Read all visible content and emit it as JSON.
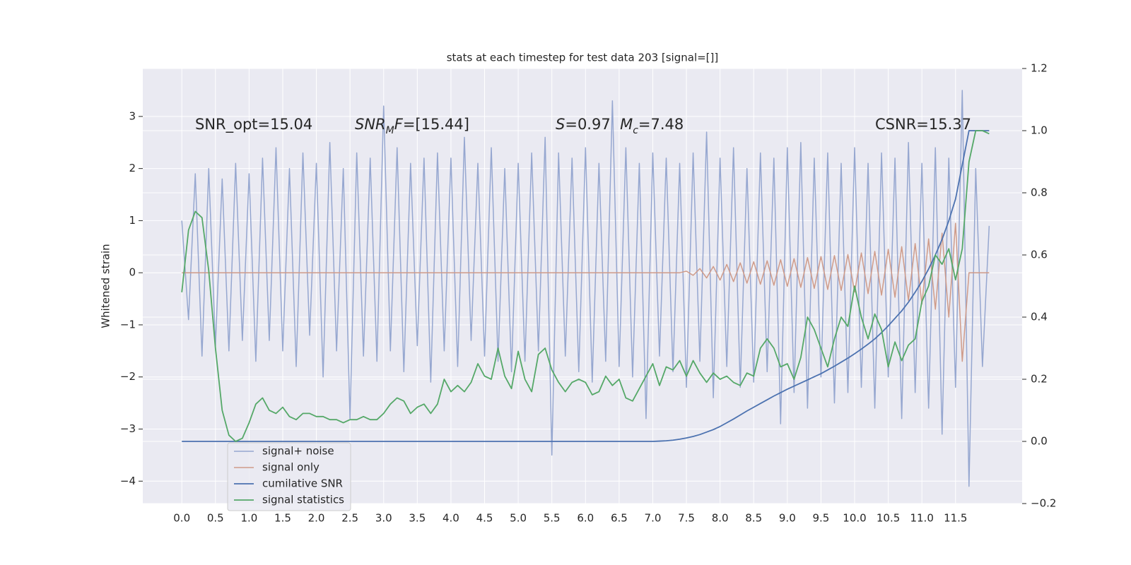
{
  "chart_data": {
    "type": "line",
    "title": "stats at each timestep for test data 203 [signal=[]]",
    "ylabel": "Whitened strain",
    "grid": true,
    "legend_loc": "lower left",
    "xlim": [
      -0.58,
      12.49
    ],
    "ylim": [
      -4.43,
      3.92
    ],
    "y2lim": [
      -0.2,
      1.2
    ],
    "xticks": [
      {
        "value": 0,
        "label": "0.0"
      },
      0.5,
      {
        "value": 1,
        "label": "1.0"
      },
      1.5,
      {
        "value": 2,
        "label": "2.0"
      },
      2.5,
      {
        "value": 3,
        "label": "3.0"
      },
      3.5,
      {
        "value": 4,
        "label": "4.0"
      },
      4.5,
      {
        "value": 5,
        "label": "5.0"
      },
      5.5,
      {
        "value": 6,
        "label": "6.0"
      },
      6.5,
      {
        "value": 7,
        "label": "7.0"
      },
      7.5,
      {
        "value": 8,
        "label": "8.0"
      },
      8.5,
      {
        "value": 9,
        "label": "9.0"
      },
      9.5,
      {
        "value": 10,
        "label": "10.0"
      },
      10.5,
      {
        "value": 11,
        "label": "11.0"
      },
      11.5
    ],
    "yticks": [
      {
        "value": -4,
        "label": "−4"
      },
      {
        "value": -3,
        "label": "−3"
      },
      {
        "value": -2,
        "label": "−2"
      },
      {
        "value": -1,
        "label": "−1"
      },
      0,
      1,
      2,
      3
    ],
    "y2ticks": [
      {
        "value": -0.2,
        "label": "−0.2"
      },
      {
        "value": 0,
        "label": "0.0"
      },
      0.2,
      0.4,
      0.6,
      0.8,
      {
        "value": 1,
        "label": "1.0"
      },
      1.2
    ],
    "annotations": [
      {
        "segments": [
          {
            "text": "SNR_opt=15.04"
          }
        ]
      },
      {
        "segments": [
          {
            "text": "SNR",
            "italic": true
          },
          {
            "text": "M",
            "italic": true,
            "sub": true
          },
          {
            "text": "F",
            "italic": true
          },
          {
            "text": "=[15.44]"
          }
        ]
      },
      {
        "segments": [
          {
            "text": "S",
            "italic": true
          },
          {
            "text": "=0.97  "
          },
          {
            "text": "M",
            "italic": true
          },
          {
            "text": "c",
            "italic": true,
            "sub": true
          },
          {
            "text": "=7.48"
          }
        ]
      },
      {
        "segments": [
          {
            "text": "CSNR=15.37"
          }
        ]
      }
    ],
    "x": [
      0,
      0.1,
      0.2,
      0.3,
      0.4,
      0.5,
      0.6,
      0.7,
      0.8,
      0.9,
      1,
      1.1,
      1.2,
      1.3,
      1.4,
      1.5,
      1.6,
      1.7,
      1.8,
      1.9,
      2,
      2.1,
      2.2,
      2.3,
      2.4,
      2.5,
      2.6,
      2.7,
      2.8,
      2.9,
      3,
      3.1,
      3.2,
      3.3,
      3.4,
      3.5,
      3.6,
      3.7,
      3.8,
      3.9,
      4,
      4.1,
      4.2,
      4.3,
      4.4,
      4.5,
      4.6,
      4.7,
      4.8,
      4.9,
      5,
      5.1,
      5.2,
      5.3,
      5.4,
      5.5,
      5.6,
      5.7,
      5.8,
      5.9,
      6,
      6.1,
      6.2,
      6.3,
      6.4,
      6.5,
      6.6,
      6.7,
      6.8,
      6.9,
      7,
      7.1,
      7.2,
      7.3,
      7.4,
      7.5,
      7.6,
      7.7,
      7.8,
      7.9,
      8,
      8.1,
      8.2,
      8.3,
      8.4,
      8.5,
      8.6,
      8.7,
      8.8,
      8.9,
      9,
      9.1,
      9.2,
      9.3,
      9.4,
      9.5,
      9.6,
      9.7,
      9.8,
      9.9,
      10,
      10.1,
      10.2,
      10.3,
      10.4,
      10.5,
      10.6,
      10.7,
      10.8,
      10.9,
      11,
      11.1,
      11.2,
      11.3,
      11.4,
      11.5,
      11.6,
      11.7,
      11.8,
      11.9,
      12
    ],
    "series": [
      {
        "name": "signal+ noise",
        "color": "#96a7d0",
        "width": 1.5,
        "values": [
          1.0,
          -0.9,
          1.9,
          -1.6,
          2.0,
          -1.4,
          1.8,
          -1.5,
          2.1,
          -1.3,
          1.9,
          -1.7,
          2.2,
          -1.3,
          2.4,
          -1.5,
          2.0,
          -1.8,
          2.3,
          -1.2,
          2.1,
          -2.0,
          2.5,
          -1.5,
          2.0,
          -2.8,
          2.3,
          -1.6,
          2.2,
          -1.7,
          3.2,
          -1.5,
          2.4,
          -1.9,
          2.1,
          -1.4,
          2.2,
          -2.1,
          2.3,
          -1.5,
          2.2,
          -1.8,
          2.6,
          -1.3,
          2.1,
          -1.6,
          2.4,
          -1.7,
          2.0,
          -1.9,
          2.1,
          -1.7,
          2.3,
          -1.5,
          2.6,
          -3.5,
          2.3,
          -1.6,
          2.2,
          -1.9,
          2.4,
          -2.1,
          2.1,
          -1.7,
          3.3,
          -1.8,
          2.4,
          -2.0,
          2.1,
          -2.8,
          2.3,
          -1.6,
          2.2,
          -1.9,
          2.1,
          -2.2,
          2.3,
          -1.7,
          2.7,
          -2.4,
          2.2,
          -1.8,
          2.4,
          -2.2,
          2.0,
          -2.1,
          2.3,
          -1.9,
          2.2,
          -2.9,
          2.4,
          -2.3,
          2.5,
          -2.6,
          2.2,
          -2.0,
          2.3,
          -2.5,
          2.1,
          -2.3,
          2.4,
          -2.2,
          2.1,
          -2.6,
          2.3,
          -2.0,
          2.2,
          -2.8,
          2.5,
          -2.3,
          2.1,
          -2.6,
          2.4,
          -3.1,
          2.2,
          -2.2,
          3.5,
          -4.1,
          2.0,
          -1.8,
          0.9
        ]
      },
      {
        "name": "signal only",
        "color": "#cf9b89",
        "width": 1.5,
        "values": [
          0,
          0,
          0,
          0,
          0,
          0,
          0,
          0,
          0,
          0,
          0,
          0,
          0,
          0,
          0,
          0,
          0,
          0,
          0,
          0,
          0,
          0,
          0,
          0,
          0,
          0,
          0,
          0,
          0,
          0,
          0,
          0,
          0,
          0,
          0,
          0,
          0,
          0,
          0,
          0,
          0,
          0,
          0,
          0,
          0,
          0,
          0,
          0,
          0,
          0,
          0,
          0,
          0,
          0,
          0,
          0,
          0,
          0,
          0,
          0,
          0,
          0,
          0,
          0,
          0,
          0,
          0,
          0,
          0,
          0,
          0,
          0,
          0,
          0,
          0,
          0.03,
          -0.05,
          0.08,
          -0.1,
          0.12,
          -0.14,
          0.16,
          -0.17,
          0.19,
          -0.2,
          0.21,
          -0.22,
          0.23,
          -0.24,
          0.25,
          -0.26,
          0.27,
          -0.28,
          0.29,
          -0.3,
          0.31,
          -0.32,
          0.33,
          -0.34,
          0.35,
          -0.37,
          0.38,
          -0.4,
          0.41,
          -0.43,
          0.45,
          -0.47,
          0.5,
          -0.53,
          0.56,
          -0.6,
          0.65,
          -0.7,
          0.76,
          -0.85,
          0.95,
          -1.7,
          0,
          0,
          0,
          0
        ]
      },
      {
        "name": "cumilative SNR",
        "color": "#4c72b0",
        "width": 1.8,
        "axis": "y2",
        "values": [
          0,
          0,
          0,
          0,
          0,
          0,
          0,
          0,
          0,
          0,
          0,
          0,
          0,
          0,
          0,
          0,
          0,
          0,
          0,
          0,
          0,
          0,
          0,
          0,
          0,
          0,
          0,
          0,
          0,
          0,
          0,
          0,
          0,
          0,
          0,
          0,
          0,
          0,
          0,
          0,
          0,
          0,
          0,
          0,
          0,
          0,
          0,
          0,
          0,
          0,
          0,
          0,
          0,
          0,
          0,
          0,
          0,
          0,
          0,
          0,
          0,
          0,
          0,
          0,
          0,
          0,
          0,
          0,
          0,
          0,
          0,
          0.001,
          0.002,
          0.004,
          0.007,
          0.011,
          0.016,
          0.022,
          0.03,
          0.038,
          0.048,
          0.06,
          0.072,
          0.085,
          0.098,
          0.11,
          0.122,
          0.134,
          0.146,
          0.157,
          0.168,
          0.178,
          0.188,
          0.198,
          0.208,
          0.218,
          0.23,
          0.242,
          0.255,
          0.268,
          0.282,
          0.297,
          0.313,
          0.33,
          0.35,
          0.372,
          0.396,
          0.42,
          0.448,
          0.48,
          0.515,
          0.555,
          0.6,
          0.65,
          0.71,
          0.78,
          0.89,
          1.0,
          1.0,
          1.0,
          1.0
        ]
      },
      {
        "name": "signal statistics",
        "color": "#55a868",
        "width": 1.8,
        "axis": "y2",
        "values": [
          0.48,
          0.68,
          0.74,
          0.72,
          0.55,
          0.3,
          0.1,
          0.02,
          0.0,
          0.01,
          0.06,
          0.12,
          0.14,
          0.1,
          0.09,
          0.11,
          0.08,
          0.07,
          0.09,
          0.09,
          0.08,
          0.08,
          0.07,
          0.07,
          0.06,
          0.07,
          0.07,
          0.08,
          0.07,
          0.07,
          0.09,
          0.12,
          0.14,
          0.13,
          0.09,
          0.11,
          0.12,
          0.09,
          0.12,
          0.2,
          0.16,
          0.18,
          0.16,
          0.19,
          0.25,
          0.21,
          0.2,
          0.3,
          0.21,
          0.17,
          0.29,
          0.2,
          0.16,
          0.28,
          0.3,
          0.23,
          0.19,
          0.16,
          0.19,
          0.2,
          0.19,
          0.15,
          0.16,
          0.21,
          0.18,
          0.2,
          0.14,
          0.13,
          0.17,
          0.21,
          0.25,
          0.18,
          0.24,
          0.23,
          0.26,
          0.21,
          0.26,
          0.22,
          0.19,
          0.22,
          0.2,
          0.21,
          0.19,
          0.18,
          0.22,
          0.21,
          0.3,
          0.33,
          0.3,
          0.24,
          0.25,
          0.2,
          0.27,
          0.4,
          0.36,
          0.3,
          0.24,
          0.33,
          0.4,
          0.37,
          0.5,
          0.4,
          0.33,
          0.41,
          0.36,
          0.24,
          0.32,
          0.26,
          0.31,
          0.33,
          0.45,
          0.5,
          0.6,
          0.57,
          0.62,
          0.52,
          0.62,
          0.9,
          1.0,
          1.0,
          0.99
        ]
      }
    ]
  }
}
